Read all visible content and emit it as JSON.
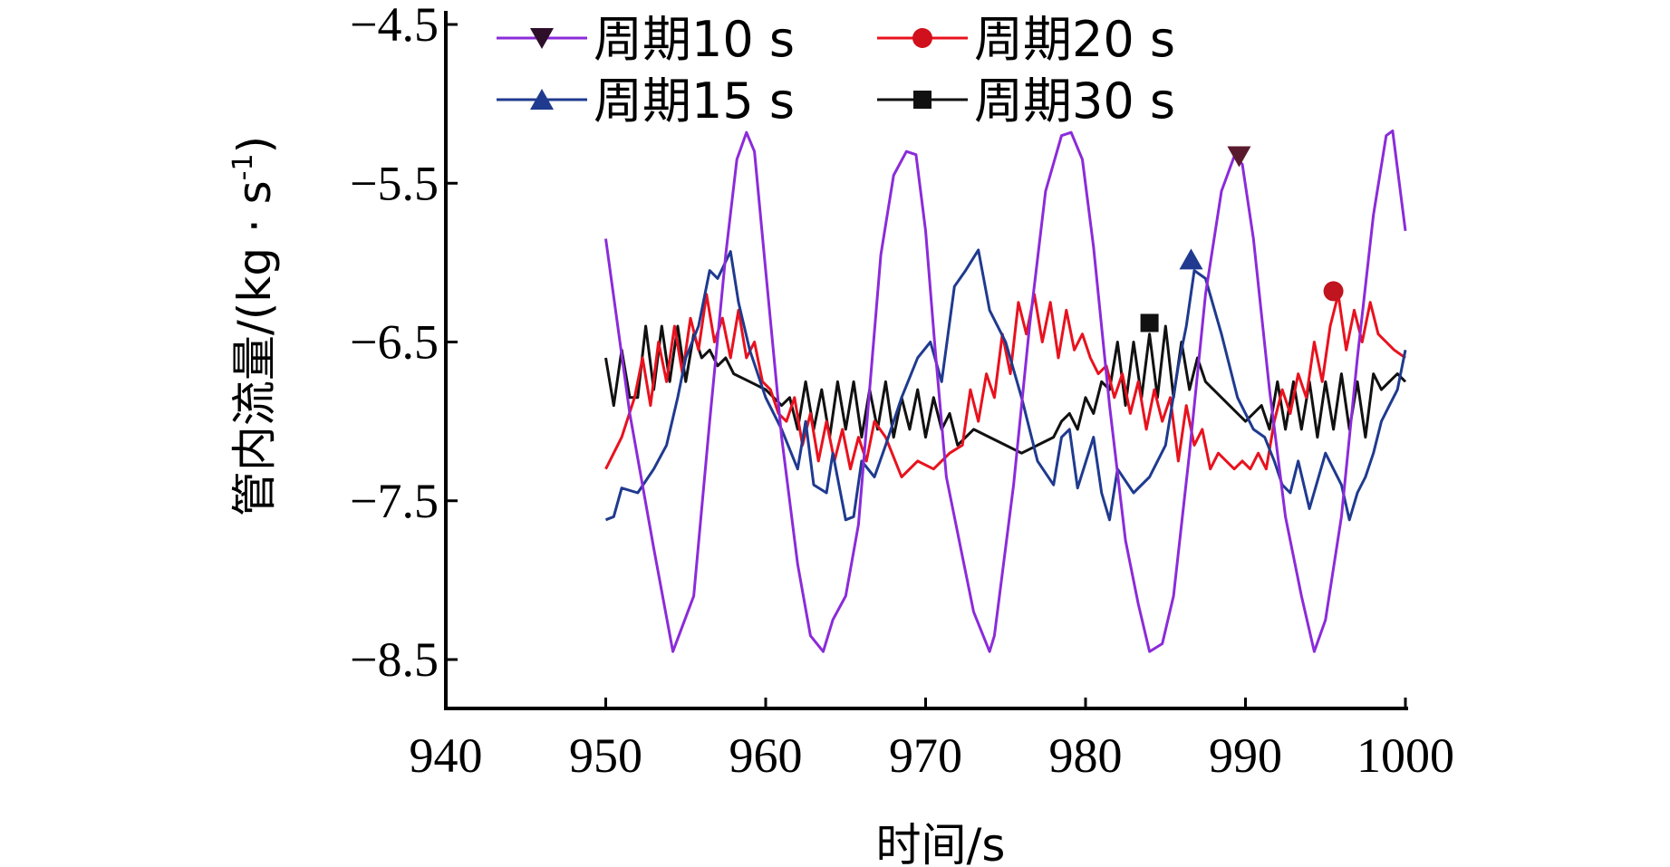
{
  "chart_data": {
    "type": "line",
    "xlabel": "时间/s",
    "ylabel": "管内流量/(kg · s",
    "ylabel_sup": "-1",
    "ylabel_close": ")",
    "xlim": [
      940,
      1000
    ],
    "ylim": [
      -8.8,
      -4.2
    ],
    "xticks": [
      940,
      950,
      960,
      970,
      980,
      990,
      1000
    ],
    "xtick_labels": [
      "940",
      "950",
      "960",
      "970",
      "980",
      "990",
      "1000"
    ],
    "yticks": [
      -4.5,
      -5.5,
      -6.5,
      -7.5,
      -8.5
    ],
    "ytick_labels": [
      "−4.5",
      "−5.5",
      "−6.5",
      "−7.5",
      "−8.5"
    ],
    "series": [
      {
        "name": "周期10 s",
        "color": "#8B2BD9",
        "marker": "triangle-down",
        "marker_point": [
          989.6,
          -5.33
        ],
        "x": [
          950.0,
          951.5,
          953.0,
          954.2,
          955.5,
          956.5,
          957.5,
          958.2,
          958.8,
          959.3,
          960.0,
          961.0,
          962.0,
          962.8,
          963.6,
          964.2,
          965.0,
          965.8,
          966.5,
          967.2,
          968.0,
          968.8,
          969.4,
          970.0,
          970.6,
          971.3,
          972.2,
          973.0,
          974.0,
          974.3,
          975.5,
          976.5,
          977.5,
          978.5,
          979.1,
          979.8,
          980.5,
          981.5,
          982.5,
          983.3,
          984.0,
          984.8,
          985.5,
          986.5,
          987.5,
          988.5,
          989.3,
          989.8,
          990.5,
          991.5,
          992.5,
          993.5,
          994.3,
          995.0,
          996.0,
          997.0,
          998.0,
          998.8,
          999.2,
          1000.0
        ],
        "y": [
          -5.85,
          -6.95,
          -7.8,
          -8.45,
          -8.1,
          -7.0,
          -5.95,
          -5.35,
          -5.18,
          -5.3,
          -6.05,
          -7.1,
          -7.9,
          -8.35,
          -8.45,
          -8.25,
          -8.1,
          -7.65,
          -6.8,
          -5.95,
          -5.45,
          -5.3,
          -5.32,
          -5.8,
          -6.55,
          -7.35,
          -7.8,
          -8.2,
          -8.45,
          -8.35,
          -7.4,
          -6.4,
          -5.55,
          -5.2,
          -5.18,
          -5.35,
          -5.9,
          -6.9,
          -7.75,
          -8.15,
          -8.45,
          -8.4,
          -8.1,
          -7.2,
          -6.2,
          -5.55,
          -5.33,
          -5.38,
          -5.85,
          -6.8,
          -7.6,
          -8.1,
          -8.45,
          -8.25,
          -7.6,
          -6.6,
          -5.7,
          -5.2,
          -5.17,
          -5.8
        ]
      },
      {
        "name": "周期15 s",
        "color": "#1F3A8F",
        "marker": "triangle-up",
        "marker_point": [
          986.6,
          -5.98
        ],
        "x": [
          950.0,
          950.5,
          951.0,
          952.0,
          953.0,
          953.8,
          954.5,
          955.0,
          955.8,
          956.5,
          957.0,
          957.8,
          958.3,
          959.0,
          960.0,
          961.0,
          962.0,
          962.5,
          963.0,
          963.8,
          964.2,
          965.0,
          965.5,
          966.0,
          966.8,
          967.5,
          968.5,
          969.5,
          970.3,
          971.0,
          971.8,
          972.5,
          973.3,
          974.0,
          975.0,
          976.0,
          977.0,
          978.0,
          978.5,
          979.0,
          979.5,
          980.5,
          981.0,
          981.5,
          982.0,
          983.0,
          984.0,
          985.0,
          985.8,
          986.3,
          986.8,
          987.5,
          988.5,
          989.5,
          990.5,
          991.2,
          991.8,
          992.3,
          992.8,
          993.3,
          994.0,
          995.0,
          996.0,
          996.5,
          997.0,
          997.5,
          998.0,
          998.5,
          999.0,
          999.5,
          1000.0
        ],
        "y": [
          -7.62,
          -7.6,
          -7.42,
          -7.45,
          -7.3,
          -7.15,
          -6.85,
          -6.6,
          -6.4,
          -6.05,
          -6.1,
          -5.93,
          -6.25,
          -6.55,
          -6.85,
          -7.05,
          -7.3,
          -7.0,
          -7.4,
          -7.45,
          -7.2,
          -7.62,
          -7.6,
          -7.25,
          -7.35,
          -7.15,
          -6.85,
          -6.6,
          -6.5,
          -6.75,
          -6.15,
          -6.05,
          -5.92,
          -6.3,
          -6.5,
          -6.85,
          -7.25,
          -7.4,
          -7.1,
          -7.05,
          -7.42,
          -7.1,
          -7.45,
          -7.62,
          -7.3,
          -7.45,
          -7.35,
          -7.15,
          -6.65,
          -6.4,
          -6.05,
          -6.1,
          -6.45,
          -6.85,
          -7.05,
          -7.1,
          -7.25,
          -7.4,
          -7.45,
          -7.25,
          -7.55,
          -7.2,
          -7.4,
          -7.62,
          -7.45,
          -7.35,
          -7.2,
          -7.0,
          -6.9,
          -6.8,
          -6.55
        ]
      },
      {
        "name": "周期20 s",
        "color": "#E8121E",
        "marker": "circle",
        "marker_point": [
          995.5,
          -6.18
        ],
        "x": [
          950.0,
          951.0,
          951.8,
          952.3,
          952.8,
          953.3,
          953.8,
          954.3,
          954.8,
          955.3,
          955.8,
          956.3,
          956.8,
          957.3,
          957.8,
          958.3,
          958.8,
          959.3,
          959.8,
          960.3,
          960.8,
          961.3,
          961.8,
          962.3,
          962.8,
          963.3,
          963.8,
          964.3,
          964.8,
          965.3,
          965.8,
          966.3,
          966.8,
          967.5,
          968.5,
          969.5,
          970.5,
          971.5,
          972.3,
          972.8,
          973.3,
          973.8,
          974.3,
          974.8,
          975.3,
          975.8,
          976.3,
          976.8,
          977.3,
          977.8,
          978.3,
          978.8,
          979.3,
          979.8,
          980.3,
          980.8,
          981.3,
          981.8,
          982.3,
          982.8,
          983.3,
          983.8,
          984.3,
          984.8,
          985.3,
          985.8,
          986.3,
          986.8,
          987.3,
          987.8,
          988.3,
          988.8,
          989.3,
          989.8,
          990.3,
          990.8,
          991.3,
          991.8,
          992.3,
          992.8,
          993.3,
          993.8,
          994.3,
          994.8,
          995.3,
          995.8,
          996.3,
          996.8,
          997.3,
          997.8,
          998.3,
          998.8,
          999.3,
          1000.0
        ],
        "y": [
          -7.3,
          -7.1,
          -6.85,
          -6.6,
          -6.9,
          -6.5,
          -6.75,
          -6.4,
          -6.7,
          -6.35,
          -6.55,
          -6.2,
          -6.5,
          -6.35,
          -6.6,
          -6.3,
          -6.6,
          -6.5,
          -6.75,
          -6.8,
          -6.95,
          -7.0,
          -6.85,
          -7.15,
          -6.95,
          -7.25,
          -7.0,
          -7.25,
          -7.05,
          -7.3,
          -7.1,
          -7.25,
          -7.0,
          -7.1,
          -7.35,
          -7.25,
          -7.3,
          -7.2,
          -7.15,
          -6.8,
          -7.0,
          -6.7,
          -6.85,
          -6.45,
          -6.7,
          -6.25,
          -6.45,
          -6.2,
          -6.5,
          -6.25,
          -6.6,
          -6.3,
          -6.55,
          -6.45,
          -6.6,
          -6.7,
          -6.65,
          -6.85,
          -6.7,
          -6.95,
          -6.75,
          -7.05,
          -6.8,
          -7.0,
          -6.85,
          -7.25,
          -6.9,
          -7.15,
          -7.05,
          -7.3,
          -7.2,
          -7.25,
          -7.3,
          -7.25,
          -7.3,
          -7.2,
          -7.3,
          -7.0,
          -6.8,
          -6.95,
          -6.7,
          -6.85,
          -6.5,
          -6.75,
          -6.4,
          -6.2,
          -6.55,
          -6.3,
          -6.5,
          -6.25,
          -6.45,
          -6.5,
          -6.55,
          -6.6
        ]
      },
      {
        "name": "周期30 s",
        "color": "#111111",
        "marker": "square",
        "marker_point": [
          984.0,
          -6.38
        ],
        "x": [
          950.0,
          950.5,
          951.0,
          951.5,
          952.0,
          952.5,
          953.0,
          953.5,
          954.0,
          954.5,
          955.0,
          955.5,
          956.0,
          956.5,
          957.0,
          957.5,
          958.0,
          959.0,
          960.0,
          961.0,
          961.5,
          962.0,
          962.5,
          963.0,
          963.5,
          964.0,
          964.5,
          965.0,
          965.5,
          966.0,
          966.5,
          967.0,
          967.5,
          968.0,
          968.5,
          969.0,
          969.5,
          970.0,
          970.5,
          971.0,
          971.5,
          972.0,
          973.0,
          974.0,
          975.0,
          976.0,
          977.0,
          978.0,
          978.5,
          979.0,
          979.5,
          980.0,
          980.5,
          981.0,
          981.5,
          982.0,
          982.5,
          983.0,
          983.5,
          984.0,
          984.5,
          985.0,
          985.5,
          986.0,
          986.5,
          987.0,
          987.5,
          988.0,
          989.0,
          990.0,
          991.0,
          991.5,
          992.0,
          992.5,
          993.0,
          993.5,
          994.0,
          994.5,
          995.0,
          995.5,
          996.0,
          996.5,
          997.0,
          997.5,
          998.0,
          998.5,
          999.0,
          999.5,
          1000.0
        ],
        "y": [
          -6.6,
          -6.9,
          -6.55,
          -6.85,
          -6.85,
          -6.4,
          -6.8,
          -6.4,
          -6.75,
          -6.4,
          -6.75,
          -6.45,
          -6.6,
          -6.55,
          -6.65,
          -6.6,
          -6.7,
          -6.75,
          -6.8,
          -6.9,
          -6.85,
          -7.05,
          -6.75,
          -7.05,
          -6.8,
          -7.1,
          -6.75,
          -7.05,
          -6.75,
          -7.1,
          -6.8,
          -7.05,
          -6.75,
          -7.1,
          -6.85,
          -7.05,
          -6.8,
          -7.1,
          -6.85,
          -7.05,
          -6.95,
          -7.15,
          -7.05,
          -7.1,
          -7.15,
          -7.2,
          -7.15,
          -7.1,
          -7.0,
          -6.95,
          -7.05,
          -6.85,
          -6.95,
          -6.75,
          -6.8,
          -6.5,
          -6.9,
          -6.5,
          -6.85,
          -6.45,
          -6.85,
          -6.4,
          -6.85,
          -6.5,
          -6.8,
          -6.6,
          -6.75,
          -6.8,
          -6.9,
          -7.0,
          -6.9,
          -7.05,
          -6.75,
          -7.05,
          -6.75,
          -7.05,
          -6.75,
          -7.1,
          -6.75,
          -7.05,
          -6.7,
          -7.05,
          -6.75,
          -7.1,
          -6.7,
          -6.8,
          -6.75,
          -6.7,
          -6.75
        ]
      }
    ],
    "legend": {
      "placement": "top"
    }
  }
}
